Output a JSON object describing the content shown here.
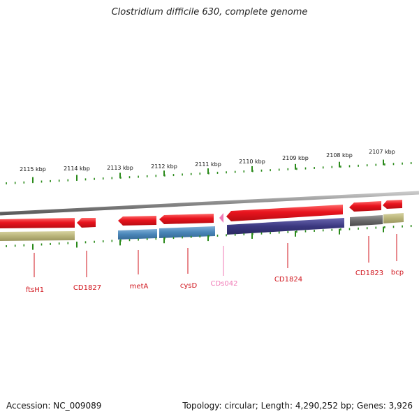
{
  "title": "Clostridium difficile 630, complete genome",
  "footer": {
    "accession": "Accession: NC_009089",
    "summary": "Topology: circular; Length: 4,290,252 bp; Genes: 3,926"
  },
  "colors": {
    "forward_gene": "#e8141e",
    "reverse_gene": "#e8141e",
    "cds": "#4a86b8",
    "cds_dark": "#3b3880",
    "gray_cds": "#707070",
    "olive_cds": "#b9b47a",
    "pink_gene": "#f07ab6",
    "backbone": "#8a8a8a",
    "ticks": "#2a8a1a",
    "label_red": "#d0141c",
    "label_pink": "#f07ab6"
  },
  "scale": {
    "ticks": [
      {
        "label": "2115 kbp"
      },
      {
        "label": "2114 kbp"
      },
      {
        "label": "2113 kbp"
      },
      {
        "label": "2112 kbp"
      },
      {
        "label": "2111 kbp"
      },
      {
        "label": "2110 kbp"
      },
      {
        "label": "2109 kbp"
      },
      {
        "label": "2108 kbp"
      },
      {
        "label": "2107 kbp"
      }
    ]
  },
  "genes": [
    {
      "name": "ftsH1",
      "color": "label_red"
    },
    {
      "name": "CD1827",
      "color": "label_red"
    },
    {
      "name": "metA",
      "color": "label_red"
    },
    {
      "name": "cysD",
      "color": "label_red"
    },
    {
      "name": "CDs042",
      "color": "label_pink"
    },
    {
      "name": "CD1824",
      "color": "label_red"
    },
    {
      "name": "CD1823",
      "color": "label_red"
    },
    {
      "name": "bcp",
      "color": "label_red"
    }
  ]
}
